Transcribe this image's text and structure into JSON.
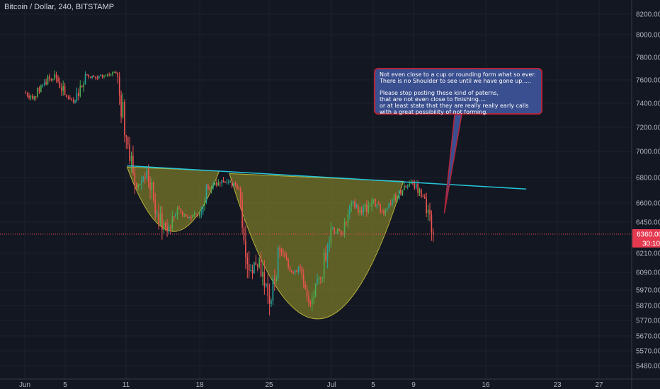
{
  "header": {
    "symbol": "Bitcoin / Dollar, 240, BITSTAMP"
  },
  "callout": {
    "lines": [
      "Not even close to a cup or rounding form what so ever.",
      "There is no Shoulder to see until we have gone up.....",
      "",
      "Please stop posting these kind of paterns,",
      "that are not even close to finishing....",
      "or at least state that they are really really early calls",
      "with a great possibility of not forming."
    ]
  },
  "price_scale": {
    "ticks": [
      "8200.00",
      "8000.00",
      "7800.00",
      "7600.00",
      "7400.00",
      "7200.00",
      "7000.00",
      "6800.00",
      "6600.00",
      "6450.00",
      "6210.00",
      "6090.00",
      "5970.00",
      "5870.00",
      "5770.00",
      "5670.00",
      "5570.00",
      "5480.00"
    ],
    "last_price": "6360.00",
    "countdown": "30:10"
  },
  "time_scale": {
    "ticks": [
      "Jun",
      "5",
      "11",
      "18",
      "25",
      "Jul",
      "5",
      "9",
      "16",
      "23",
      "27"
    ]
  },
  "colors": {
    "up": "#26a69a",
    "up_bright": "#4caf50",
    "down": "#ef5350",
    "neckline": "#26c6da",
    "pattern_fill": "#7c7a2a",
    "price_line": "#ef5350",
    "background": "#131722"
  },
  "chart_data": {
    "type": "candlestick",
    "title": "Bitcoin / Dollar, 240, BITSTAMP",
    "ylim": [
      5400,
      8300
    ],
    "ohlc": [
      {
        "t": "Jun 1",
        "o": 7490,
        "h": 7560,
        "l": 7380,
        "c": 7460
      },
      {
        "t": "Jun 2",
        "o": 7460,
        "h": 7620,
        "l": 7420,
        "c": 7580
      },
      {
        "t": "Jun 3",
        "o": 7580,
        "h": 7700,
        "l": 7500,
        "c": 7650
      },
      {
        "t": "Jun 4",
        "o": 7650,
        "h": 7690,
        "l": 7400,
        "c": 7470
      },
      {
        "t": "Jun 5",
        "o": 7470,
        "h": 7520,
        "l": 7380,
        "c": 7420
      },
      {
        "t": "Jun 6",
        "o": 7420,
        "h": 7700,
        "l": 7400,
        "c": 7650
      },
      {
        "t": "Jun 7",
        "o": 7650,
        "h": 7720,
        "l": 7580,
        "c": 7620
      },
      {
        "t": "Jun 8",
        "o": 7620,
        "h": 7680,
        "l": 7550,
        "c": 7640
      },
      {
        "t": "Jun 9",
        "o": 7640,
        "h": 7700,
        "l": 7600,
        "c": 7660
      },
      {
        "t": "Jun 10",
        "o": 7660,
        "h": 7670,
        "l": 7020,
        "c": 7120
      },
      {
        "t": "Jun 11",
        "o": 7120,
        "h": 7180,
        "l": 6620,
        "c": 6720
      },
      {
        "t": "Jun 12",
        "o": 6720,
        "h": 6920,
        "l": 6620,
        "c": 6860
      },
      {
        "t": "Jun 13",
        "o": 6860,
        "h": 6900,
        "l": 6430,
        "c": 6520
      },
      {
        "t": "Jun 14",
        "o": 6520,
        "h": 6600,
        "l": 6150,
        "c": 6380
      },
      {
        "t": "Jun 15",
        "o": 6380,
        "h": 6620,
        "l": 6340,
        "c": 6560
      },
      {
        "t": "Jun 16",
        "o": 6560,
        "h": 6640,
        "l": 6440,
        "c": 6480
      },
      {
        "t": "Jun 17",
        "o": 6480,
        "h": 6560,
        "l": 6420,
        "c": 6500
      },
      {
        "t": "Jun 18",
        "o": 6500,
        "h": 6860,
        "l": 6480,
        "c": 6720
      },
      {
        "t": "Jun 19",
        "o": 6720,
        "h": 6830,
        "l": 6640,
        "c": 6760
      },
      {
        "t": "Jun 20",
        "o": 6760,
        "h": 6830,
        "l": 6620,
        "c": 6770
      },
      {
        "t": "Jun 21",
        "o": 6770,
        "h": 6800,
        "l": 6680,
        "c": 6710
      },
      {
        "t": "Jun 22",
        "o": 6710,
        "h": 6730,
        "l": 6050,
        "c": 6100
      },
      {
        "t": "Jun 23",
        "o": 6100,
        "h": 6240,
        "l": 5980,
        "c": 6180
      },
      {
        "t": "Jun 24",
        "o": 6180,
        "h": 6260,
        "l": 5770,
        "c": 5880
      },
      {
        "t": "Jun 25",
        "o": 5880,
        "h": 6270,
        "l": 5860,
        "c": 6240
      },
      {
        "t": "Jun 26",
        "o": 6240,
        "h": 6280,
        "l": 6080,
        "c": 6100
      },
      {
        "t": "Jun 27",
        "o": 6100,
        "h": 6180,
        "l": 6030,
        "c": 6120
      },
      {
        "t": "Jun 28",
        "o": 6120,
        "h": 6130,
        "l": 5860,
        "c": 5880
      },
      {
        "t": "Jun 29",
        "o": 5880,
        "h": 6080,
        "l": 5780,
        "c": 6050
      },
      {
        "t": "Jun 30",
        "o": 6050,
        "h": 6450,
        "l": 6020,
        "c": 6400
      },
      {
        "t": "Jul 1",
        "o": 6400,
        "h": 6460,
        "l": 6310,
        "c": 6360
      },
      {
        "t": "Jul 2",
        "o": 6360,
        "h": 6620,
        "l": 6320,
        "c": 6600
      },
      {
        "t": "Jul 3",
        "o": 6600,
        "h": 6680,
        "l": 6500,
        "c": 6520
      },
      {
        "t": "Jul 4",
        "o": 6520,
        "h": 6770,
        "l": 6490,
        "c": 6620
      },
      {
        "t": "Jul 5",
        "o": 6620,
        "h": 6660,
        "l": 6480,
        "c": 6530
      },
      {
        "t": "Jul 6",
        "o": 6530,
        "h": 6650,
        "l": 6470,
        "c": 6620
      },
      {
        "t": "Jul 7",
        "o": 6620,
        "h": 6720,
        "l": 6560,
        "c": 6700
      },
      {
        "t": "Jul 8",
        "o": 6700,
        "h": 6820,
        "l": 6650,
        "c": 6760
      },
      {
        "t": "Jul 9",
        "o": 6760,
        "h": 6800,
        "l": 6620,
        "c": 6650
      },
      {
        "t": "Jul 10",
        "o": 6650,
        "h": 6680,
        "l": 6300,
        "c": 6360
      }
    ],
    "annotations": [
      {
        "type": "neckline",
        "from": {
          "t": "Jun 11",
          "price": 6890
        },
        "to": {
          "t": "Jul 20",
          "price": 6710
        }
      },
      {
        "type": "arc",
        "label": "left cup",
        "from": {
          "t": "Jun 11",
          "price": 6880
        },
        "to": {
          "t": "Jun 20",
          "price": 6850
        },
        "bottom": 6380
      },
      {
        "type": "arc",
        "label": "main cup",
        "from": {
          "t": "Jun 21",
          "price": 6830
        },
        "to": {
          "t": "Jul 8",
          "price": 6770
        },
        "bottom": 5780
      },
      {
        "type": "pointer",
        "from": {
          "t": "Jul 12",
          "price": 6520
        }
      }
    ],
    "last_price": 6360
  }
}
